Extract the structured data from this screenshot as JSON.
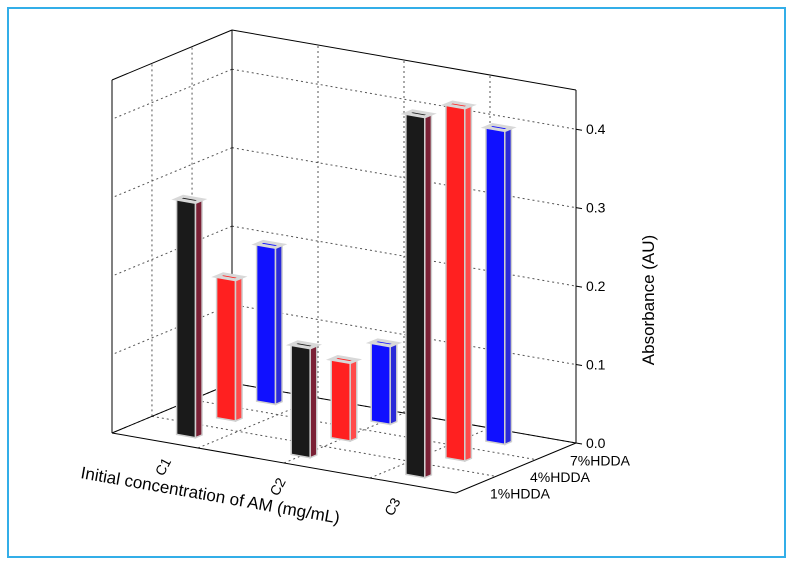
{
  "chart_data": {
    "type": "bar",
    "subtype": "3d-grouped-bar",
    "title": "",
    "xlabel": "Initial concentration of AM (mg/mL)",
    "ylabel": "Absorbance (AU)",
    "categories": [
      "C1",
      "C2",
      "C3"
    ],
    "depth_categories": [
      "1%HDDA",
      "4%HDDA",
      "7%HDDA"
    ],
    "ylim": [
      0,
      0.45
    ],
    "yticks": [
      "0.0",
      "0.1",
      "0.2",
      "0.3",
      "0.4"
    ],
    "grid": true,
    "series": [
      {
        "name": "1%HDDA",
        "color": "#1a1a1a",
        "side_color": "#7a2035",
        "values": [
          0.3,
          0.14,
          0.46
        ]
      },
      {
        "name": "4%HDDA",
        "color": "#ff2020",
        "side_color": "#ff4a4a",
        "values": [
          0.18,
          0.1,
          0.45
        ]
      },
      {
        "name": "7%HDDA",
        "color": "#1010ff",
        "side_color": "#2a2ad8",
        "values": [
          0.2,
          0.1,
          0.4
        ]
      }
    ]
  }
}
